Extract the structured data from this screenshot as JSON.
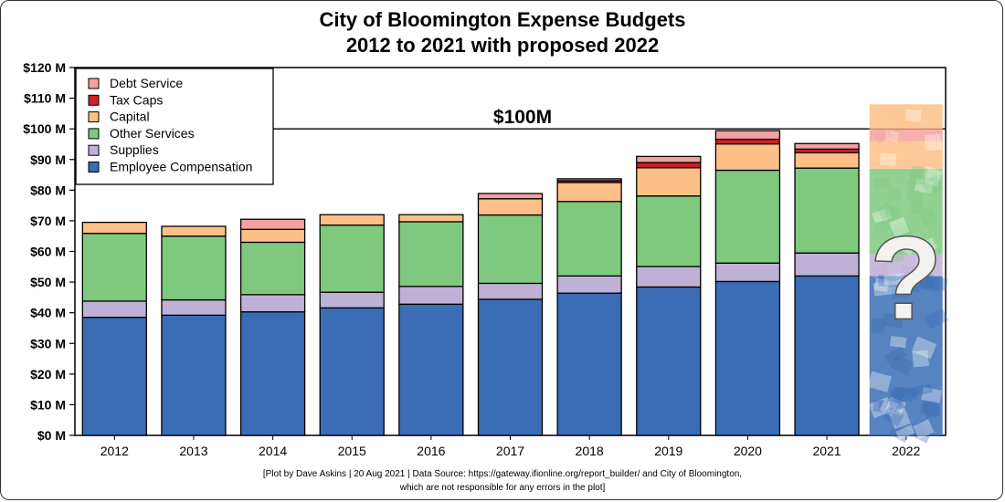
{
  "chart_data": {
    "type": "bar",
    "stacked": true,
    "title": "City of Bloomington Expense Budgets",
    "subtitle": "2012 to 2021 with proposed 2022",
    "categories": [
      "2012",
      "2013",
      "2014",
      "2015",
      "2016",
      "2017",
      "2018",
      "2019",
      "2020",
      "2021",
      "2022"
    ],
    "series": [
      {
        "name": "Employee Compensation",
        "color": "#3a6db5",
        "values": [
          38.5,
          39.2,
          40.3,
          41.6,
          42.8,
          44.4,
          46.4,
          48.4,
          50.2,
          52.0,
          null
        ]
      },
      {
        "name": "Supplies",
        "color": "#bfb0d6",
        "values": [
          5.3,
          5.0,
          5.6,
          5.1,
          5.8,
          5.2,
          5.6,
          6.7,
          6.0,
          7.5,
          null
        ]
      },
      {
        "name": "Other Services",
        "color": "#7fc97f",
        "values": [
          22.1,
          20.8,
          17.1,
          21.9,
          21.1,
          22.3,
          24.3,
          23.0,
          30.3,
          27.7,
          null
        ]
      },
      {
        "name": "Capital",
        "color": "#fdc086",
        "values": [
          3.6,
          3.2,
          4.2,
          3.4,
          2.3,
          5.3,
          6.2,
          9.2,
          8.6,
          5.0,
          null
        ]
      },
      {
        "name": "Tax Caps",
        "color": "#cc1f27",
        "values": [
          0,
          0,
          0,
          0,
          0,
          0,
          0.6,
          1.7,
          1.5,
          1.2,
          null
        ]
      },
      {
        "name": "Debt Service",
        "color": "#f4a0a0",
        "values": [
          0,
          0,
          3.3,
          0,
          0,
          1.7,
          0.6,
          2.0,
          2.8,
          1.8,
          null
        ]
      }
    ],
    "ylim": [
      0,
      120
    ],
    "yticks": [
      0,
      10,
      20,
      30,
      40,
      50,
      60,
      70,
      80,
      90,
      100,
      110,
      120
    ],
    "ytick_labels": [
      "$0 M",
      "$10 M",
      "$20 M",
      "$30 M",
      "$40 M",
      "$50 M",
      "$60 M",
      "$70 M",
      "$80 M",
      "$90 M",
      "$100 M",
      "$110 M",
      "$120 M"
    ],
    "reference_line": {
      "value": 100,
      "label": "$100M"
    },
    "proposed_category": {
      "category": "2022",
      "label": "?"
    },
    "legend_position": "top-left",
    "grid": false
  },
  "footer": {
    "line1": "[Plot by Dave Askins | 20 Aug 2021 | Data Source: https://gateway.ifionline.org/report_builder/ and City of Bloomington,",
    "line2": "which are not responsible for any errors in the plot]"
  }
}
